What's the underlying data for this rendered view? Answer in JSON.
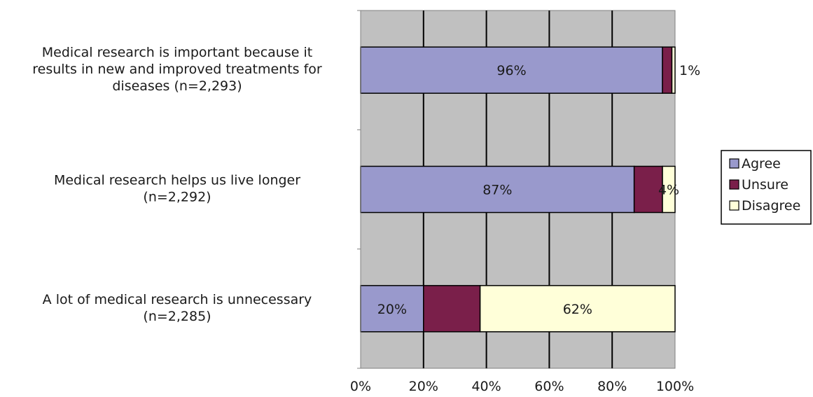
{
  "chart_data": {
    "type": "bar",
    "orientation": "horizontal",
    "stacked": true,
    "categories": [
      [
        "Medical research is important because it",
        "results in new and improved treatments for",
        "diseases (n=2,293)"
      ],
      [
        "Medical research helps us live longer",
        "(n=2,292)"
      ],
      [
        "A lot of medical research is unnecessary",
        "(n=2,285)"
      ]
    ],
    "series": [
      {
        "name": "Agree",
        "values": [
          96,
          87,
          20
        ],
        "color": "#9999cc"
      },
      {
        "name": "Unsure",
        "values": [
          3,
          9,
          18
        ],
        "color": "#7a1f4a"
      },
      {
        "name": "Disagree",
        "values": [
          1,
          4,
          62
        ],
        "color": "#ffffd9"
      }
    ],
    "data_labels": [
      [
        {
          "series": 0,
          "text": "96%"
        },
        {
          "series": 2,
          "text": "1%",
          "outside": true
        }
      ],
      [
        {
          "series": 0,
          "text": "87%"
        },
        {
          "series": 2,
          "text": "4%"
        }
      ],
      [
        {
          "series": 0,
          "text": "20%"
        },
        {
          "series": 2,
          "text": "62%"
        }
      ]
    ],
    "x_ticks": [
      "0%",
      "20%",
      "40%",
      "60%",
      "80%",
      "100%"
    ],
    "xlim": [
      0,
      100
    ],
    "grid": true,
    "plot_background": "#c0c0c0",
    "legend_position": "right"
  }
}
